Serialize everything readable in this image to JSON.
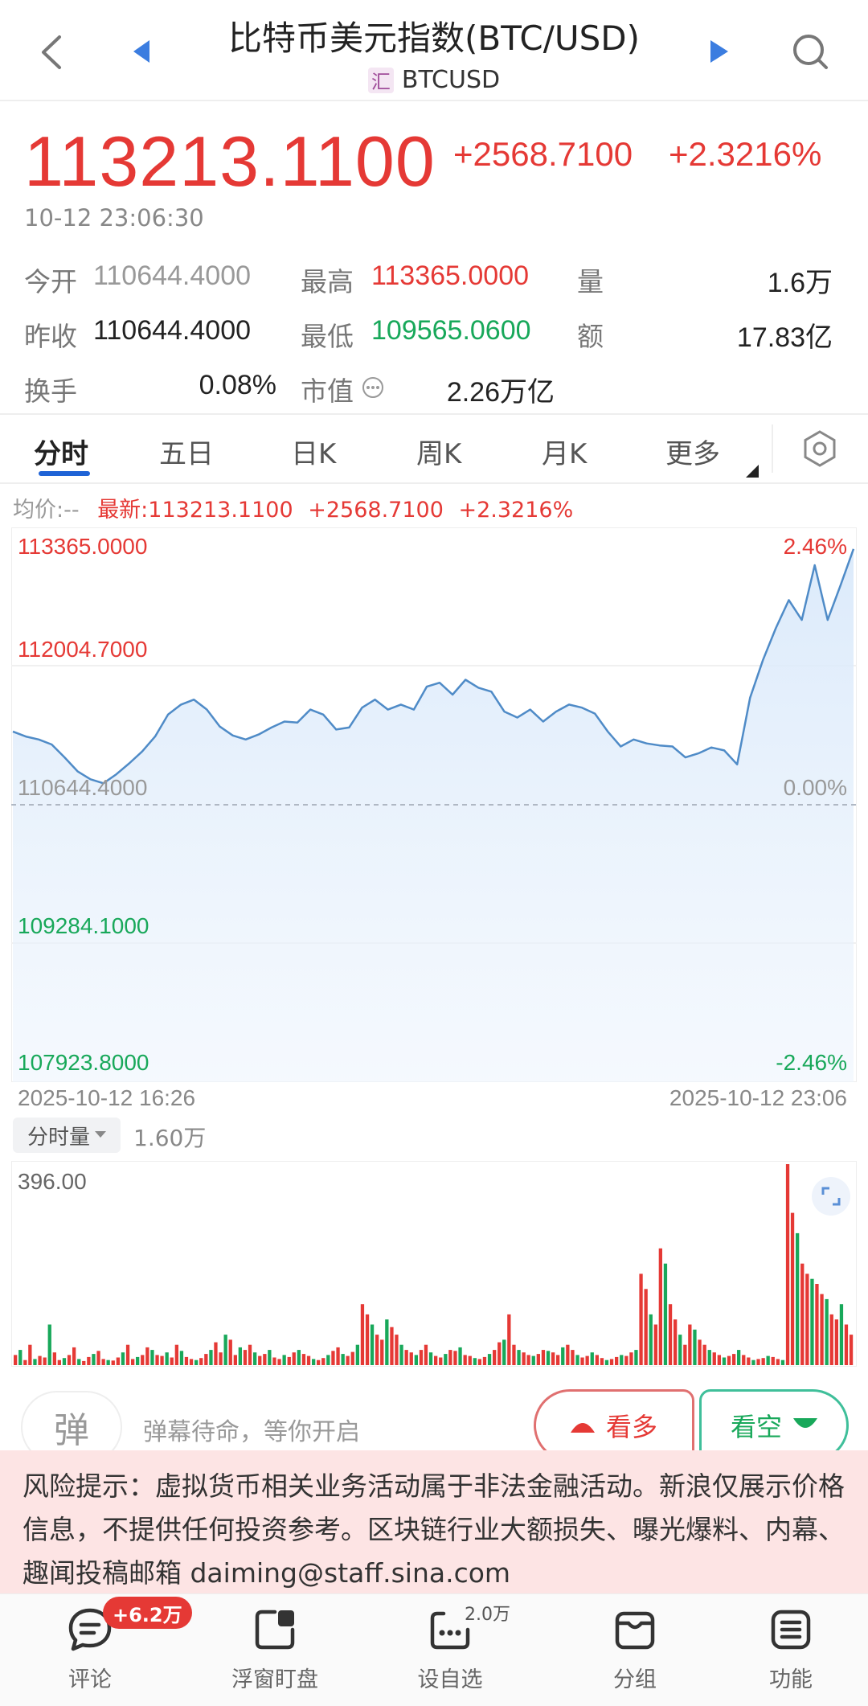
{
  "header": {
    "title": "比特币美元指数(BTC/USD)",
    "badge": "汇",
    "symbol": "BTCUSD"
  },
  "quote": {
    "price": "113213.1100",
    "change": "+2568.7100",
    "change_pct": "+2.3216%",
    "time": "10-12 23:06:30"
  },
  "stats": {
    "open_label": "今开",
    "open": "110644.4000",
    "high_label": "最高",
    "high": "113365.0000",
    "vol_label": "量",
    "vol": "1.6万",
    "prev_label": "昨收",
    "prev": "110644.4000",
    "low_label": "最低",
    "low": "109565.0600",
    "amt_label": "额",
    "amt": "17.83亿",
    "turn_label": "换手",
    "turn": "0.08%",
    "cap_label": "市值",
    "cap": "2.26万亿"
  },
  "tabs": [
    "分时",
    "五日",
    "日K",
    "周K",
    "月K",
    "更多"
  ],
  "chart_info": {
    "avg": "均价:--",
    "latest": "最新:113213.1100",
    "change": "+2568.7100",
    "pct": "+2.3216%"
  },
  "chart_data": {
    "type": "line",
    "title": "",
    "y_left_ticks": [
      "113365.0000",
      "112004.7000",
      "110644.4000",
      "109284.1000",
      "107923.8000"
    ],
    "y_right_ticks": [
      "2.46%",
      "0.00%",
      "-2.46%"
    ],
    "ylim": [
      107923.8,
      113365.0
    ],
    "x_start": "2025-10-12 16:26",
    "x_end": "2025-10-12 23:06",
    "baseline": 110644.4,
    "series": [
      {
        "values": [
          111380,
          111330,
          111300,
          111250,
          111120,
          110980,
          110900,
          110860,
          110950,
          111060,
          111180,
          111330,
          111550,
          111650,
          111700,
          111600,
          111430,
          111340,
          111300,
          111350,
          111420,
          111480,
          111470,
          111600,
          111550,
          111400,
          111420,
          111620,
          111700,
          111600,
          111650,
          111600,
          111830,
          111870,
          111750,
          111900,
          111820,
          111780,
          111580,
          111520,
          111600,
          111480,
          111580,
          111650,
          111620,
          111560,
          111380,
          111230,
          111300,
          111260,
          111240,
          111230,
          111120,
          111160,
          111220,
          111190,
          111050,
          111720,
          112100,
          112420,
          112700,
          112500,
          113050,
          112500,
          112850,
          113213
        ]
      }
    ]
  },
  "volume": {
    "toggle_label": "分时量",
    "total": "1.60万",
    "max_label": "396.00",
    "values": [
      20,
      30,
      10,
      40,
      12,
      18,
      15,
      80,
      25,
      10,
      14,
      20,
      35,
      12,
      8,
      16,
      22,
      28,
      12,
      10,
      9,
      15,
      25,
      40,
      12,
      16,
      20,
      35,
      30,
      20,
      18,
      25,
      15,
      40,
      28,
      16,
      12,
      10,
      14,
      22,
      30,
      45,
      25,
      60,
      50,
      20,
      35,
      30,
      40,
      25,
      18,
      22,
      30,
      15,
      12,
      20,
      16,
      25,
      30,
      22,
      18,
      12,
      10,
      14,
      20,
      28,
      35,
      22,
      18,
      26,
      40,
      120,
      100,
      80,
      60,
      50,
      90,
      75,
      60,
      40,
      30,
      25,
      20,
      30,
      40,
      25,
      18,
      15,
      22,
      30,
      28,
      35,
      20,
      18,
      14,
      12,
      16,
      22,
      30,
      45,
      50,
      100,
      40,
      30,
      25,
      20,
      18,
      22,
      30,
      28,
      25,
      20,
      35,
      40,
      30,
      20,
      15,
      18,
      25,
      20,
      14,
      10,
      12,
      16,
      20,
      18,
      25,
      30,
      180,
      150,
      100,
      80,
      230,
      200,
      120,
      90,
      60,
      40,
      80,
      70,
      50,
      40,
      30,
      25,
      20,
      15,
      18,
      22,
      30,
      20,
      15,
      10,
      12,
      14,
      18,
      16,
      12,
      10,
      396,
      300,
      260,
      200,
      180,
      170,
      160,
      140,
      130,
      100,
      90,
      120,
      80,
      60
    ]
  },
  "danmaku": {
    "icon": "弹",
    "placeholder": "弹幕待命，等你开启",
    "bull": "看多",
    "bear": "看空"
  },
  "risk": "风险提示：虚拟货币相关业务活动属于非法金融活动。新浪仅展示价格信息，不提供任何投资参考。区块链行业大额损失、曝光爆料、内幕、趣闻投稿邮箱 daiming@staff.sina.com",
  "nav": {
    "badge": "+6.2万",
    "count": "2.0万",
    "items": [
      "评论",
      "浮窗盯盘",
      "设自选",
      "分组",
      "功能"
    ]
  },
  "colors": {
    "up": "#e53935",
    "down": "#18a85a",
    "line": "#4f8bc7",
    "tab_accent": "#1f63d6"
  }
}
